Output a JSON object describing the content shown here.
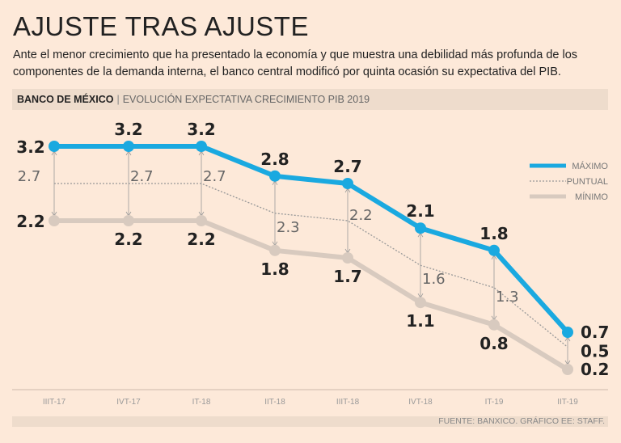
{
  "header": {
    "title": "AJUSTE TRAS AJUSTE",
    "subtitle": "Ante el menor crecimiento que ha presentado la economía y que muestra una debilidad más profunda de los componentes de la demanda interna, el banco central modificó por quinta ocasión su expectativa del PIB.",
    "source_org": "BANCO DE MÉXICO",
    "chart_title": "EVOLUCIÓN EXPECTATIVA CRECIMIENTO PIB 2019"
  },
  "footer": {
    "source": "FUENTE: BANXICO. GRÁFICO EE: STAFF."
  },
  "chart_data": {
    "type": "line",
    "title": "EVOLUCIÓN EXPECTATIVA CRECIMIENTO PIB 2019",
    "categories": [
      "IIIT-17",
      "IVT-17",
      "IT-18",
      "IIT-18",
      "IIIT-18",
      "IVT-18",
      "IT-19",
      "IIT-19"
    ],
    "series": [
      {
        "name": "MÁXIMO",
        "color": "#1aa9e0",
        "values": [
          3.2,
          3.2,
          3.2,
          2.8,
          2.7,
          2.1,
          1.8,
          0.7
        ]
      },
      {
        "name": "PUNTUAL",
        "color": "#999999",
        "values": [
          2.7,
          2.7,
          2.7,
          2.3,
          2.2,
          1.6,
          1.3,
          0.5
        ]
      },
      {
        "name": "MÍNIMO",
        "color": "#d8cabf",
        "values": [
          2.2,
          2.2,
          2.2,
          1.8,
          1.7,
          1.1,
          0.8,
          0.2
        ]
      }
    ],
    "legend": "top-right",
    "grid": false
  }
}
